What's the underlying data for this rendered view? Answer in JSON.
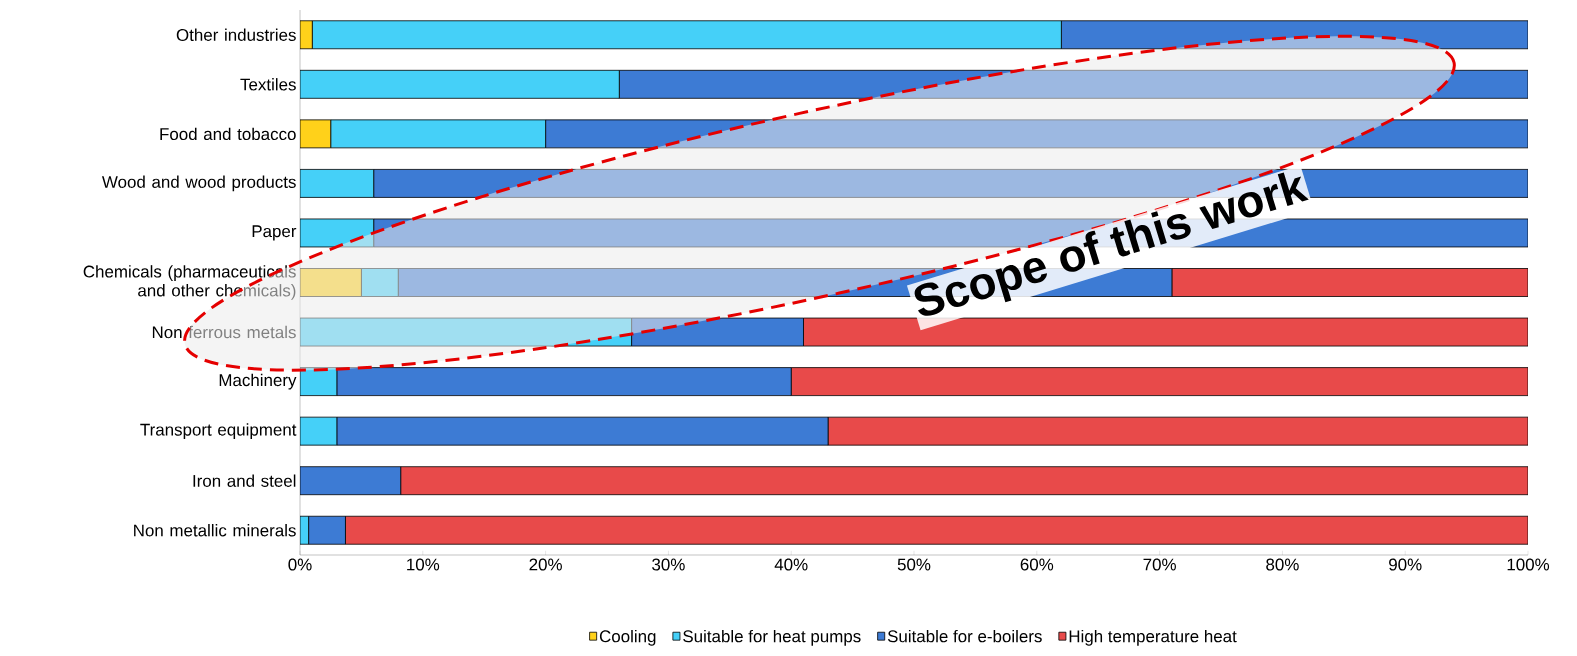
{
  "chart_data": {
    "type": "bar",
    "orientation": "horizontal",
    "stacked": true,
    "categories": [
      "Other industries",
      "Textiles",
      "Food and tobacco",
      "Wood and wood products",
      "Paper",
      "Chemicals (pharmaceuticals and other chemicals)",
      "Non ferrous metals",
      "Machinery",
      "Transport equipment",
      "Iron and steel",
      "Non metallic minerals"
    ],
    "series": [
      {
        "name": "Cooling",
        "color": "#ffd11a",
        "values": [
          1,
          0,
          2.5,
          0,
          0,
          5,
          0,
          0,
          0,
          0,
          0
        ]
      },
      {
        "name": "Suitable for heat pumps",
        "color": "#45d0f8",
        "values": [
          61,
          26,
          17.5,
          6,
          6,
          3,
          27,
          3,
          3,
          0,
          0.7
        ]
      },
      {
        "name": "Suitable for e-boilers",
        "color": "#3d7bd4",
        "values": [
          38,
          74,
          80,
          94,
          94,
          63,
          14,
          37,
          40,
          8.2,
          3
        ]
      },
      {
        "name": "High temperature heat",
        "color": "#e84a4a",
        "values": [
          0,
          0,
          0,
          0,
          0,
          29,
          59,
          60,
          57,
          91.8,
          96.3
        ]
      }
    ],
    "xlim": [
      0,
      100
    ],
    "xticks": [
      {
        "value": 0,
        "label": "0%"
      },
      {
        "value": 10,
        "label": "10%"
      },
      {
        "value": 20,
        "label": "20%"
      },
      {
        "value": 30,
        "label": "30%"
      },
      {
        "value": 40,
        "label": "40%"
      },
      {
        "value": 50,
        "label": "50%"
      },
      {
        "value": 60,
        "label": "60%"
      },
      {
        "value": 70,
        "label": "70%"
      },
      {
        "value": 80,
        "label": "80%"
      },
      {
        "value": 90,
        "label": "90%"
      },
      {
        "value": 100,
        "label": "100%"
      }
    ],
    "legend": "bottom",
    "annotations": [
      "Scope of this work"
    ]
  }
}
